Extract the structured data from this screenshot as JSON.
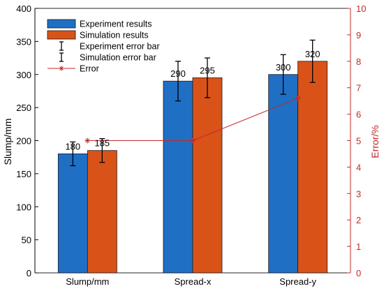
{
  "chart_data": {
    "type": "bar",
    "categories": [
      "Slump/mm",
      "Spread-x",
      "Spread-y"
    ],
    "ylabel": "Slump/mm",
    "y2label": "Error/%",
    "ylim": [
      0,
      400
    ],
    "y2lim": [
      0,
      10
    ],
    "yticks": [
      "0",
      "50",
      "100",
      "150",
      "200",
      "250",
      "300",
      "350",
      "400"
    ],
    "y2ticks": [
      "0",
      "1",
      "2",
      "3",
      "4",
      "5",
      "6",
      "7",
      "8",
      "9",
      "10"
    ],
    "grid": false,
    "legend_position": "top-left",
    "series": [
      {
        "name": "Experiment results",
        "values": [
          180,
          290,
          300
        ],
        "labels": [
          "180",
          "290",
          "300"
        ],
        "error": [
          18,
          30,
          30
        ],
        "color": "#1f6fc5"
      },
      {
        "name": "Simulation results",
        "values": [
          185,
          295,
          320
        ],
        "labels": [
          "185",
          "295",
          "320"
        ],
        "error": [
          18,
          30,
          32
        ],
        "color": "#d95319"
      }
    ],
    "error_series": {
      "name": "Error",
      "axis": "right",
      "values": [
        5.0,
        5.0,
        6.6
      ],
      "color": "#c22a2a"
    },
    "legend": [
      {
        "label": "Experiment results",
        "kind": "bar",
        "color": "#1f6fc5"
      },
      {
        "label": "Simulation results",
        "kind": "bar",
        "color": "#d95319"
      },
      {
        "label": "Experiment error bar",
        "kind": "errorbar",
        "color": "#000000"
      },
      {
        "label": "Simulation error bar",
        "kind": "errorbar",
        "color": "#000000"
      },
      {
        "label": "Error",
        "kind": "line-star",
        "color": "#c22a2a"
      }
    ],
    "axis_colors": {
      "left": "#000000",
      "right": "#c22a2a"
    }
  }
}
